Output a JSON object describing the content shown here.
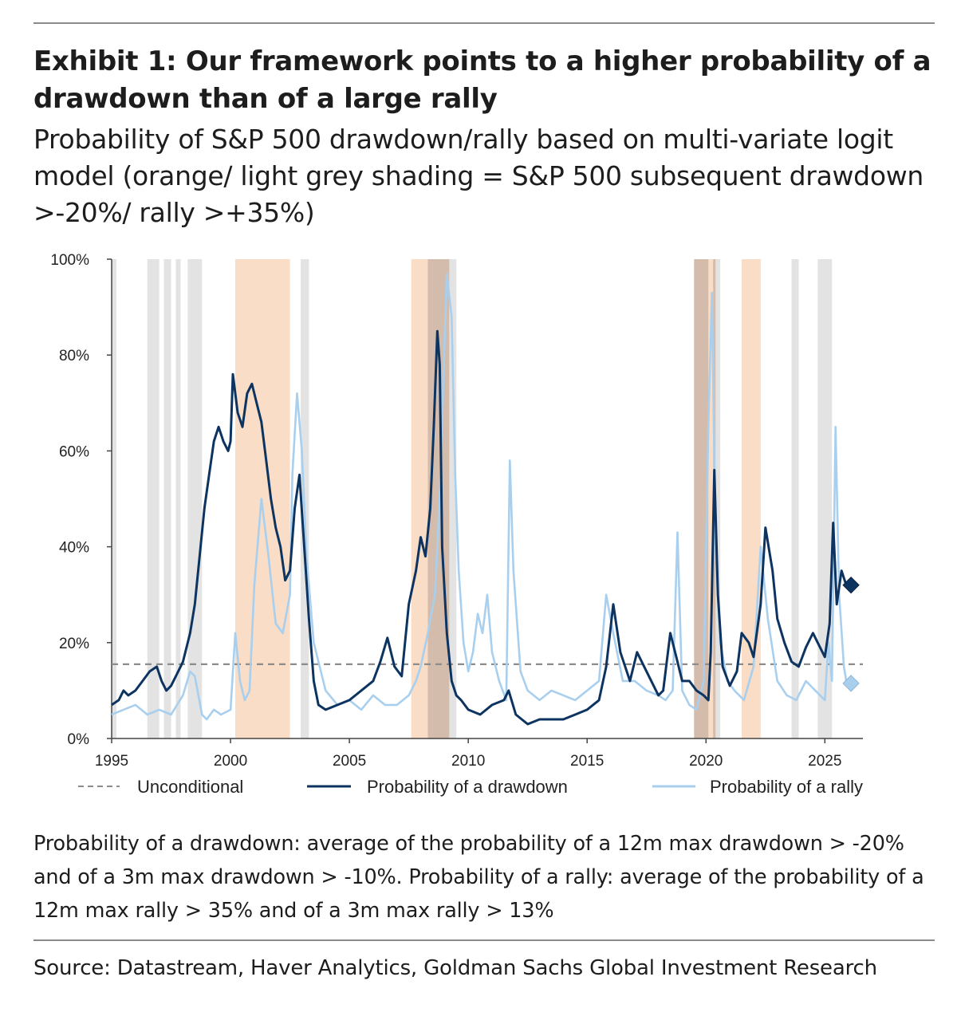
{
  "header": {
    "title": "Exhibit 1: Our framework points to a higher probability of a drawdown than of a large rally",
    "subtitle": "Probability of S&P 500 drawdown/rally based on multi-variate logit model (orange/ light grey shading = S&P 500 subsequent drawdown >-20%/ rally >+35%)"
  },
  "colors": {
    "drawdown": "#0d3460",
    "rally": "#a9cfee",
    "unconditional": "#8c8c8c",
    "drawdown_shade": "#f8d4b8",
    "rally_shade": "#dedede"
  },
  "chart_data": {
    "type": "line",
    "xlim": [
      1995,
      2026.6
    ],
    "ylim": [
      0,
      100
    ],
    "x_ticks": [
      1995,
      2000,
      2005,
      2010,
      2015,
      2020,
      2025
    ],
    "x_tick_labels": [
      "1995",
      "2000",
      "2005",
      "2010",
      "2015",
      "2020",
      "2025"
    ],
    "y_ticks": [
      0,
      20,
      40,
      60,
      80,
      100
    ],
    "y_tick_labels": [
      "0%",
      "20%",
      "40%",
      "60%",
      "80%",
      "100%"
    ],
    "unconditional": 15.5,
    "drawdown_periods": [
      [
        2000.2,
        2002.5
      ],
      [
        2007.6,
        2009.2
      ],
      [
        2019.5,
        2020.4
      ],
      [
        2021.5,
        2022.3
      ]
    ],
    "rally_periods": [
      [
        1995.0,
        1995.2
      ],
      [
        1996.5,
        1997.0
      ],
      [
        1997.2,
        1997.5
      ],
      [
        1997.7,
        1997.9
      ],
      [
        1998.2,
        1998.8
      ],
      [
        2002.95,
        2003.3
      ],
      [
        2008.3,
        2009.5
      ],
      [
        2019.5,
        2020.1
      ],
      [
        2020.3,
        2020.6
      ],
      [
        2023.6,
        2023.9
      ],
      [
        2024.7,
        2025.3
      ]
    ],
    "legend": [
      "Unconditional",
      "Probability of a drawdown",
      "Probability of a rally"
    ],
    "series": [
      {
        "name": "Probability of a drawdown",
        "x": [
          1995,
          1995.3,
          1995.5,
          1995.7,
          1996,
          1996.3,
          1996.6,
          1996.9,
          1997.1,
          1997.3,
          1997.5,
          1997.7,
          1998,
          1998.3,
          1998.5,
          1998.7,
          1998.9,
          1999.1,
          1999.3,
          1999.5,
          1999.7,
          1999.9,
          2000,
          2000.1,
          2000.3,
          2000.5,
          2000.7,
          2000.9,
          2001.1,
          2001.3,
          2001.5,
          2001.7,
          2001.9,
          2002.1,
          2002.3,
          2002.5,
          2002.7,
          2002.9,
          2003.1,
          2003.3,
          2003.5,
          2003.7,
          2004,
          2004.5,
          2005,
          2005.5,
          2006,
          2006.3,
          2006.6,
          2006.9,
          2007.2,
          2007.5,
          2007.8,
          2008,
          2008.2,
          2008.4,
          2008.55,
          2008.7,
          2008.8,
          2008.9,
          2009.1,
          2009.3,
          2009.5,
          2009.7,
          2010,
          2010.5,
          2011,
          2011.5,
          2011.7,
          2012,
          2012.5,
          2013,
          2013.5,
          2014,
          2014.5,
          2015,
          2015.5,
          2015.8,
          2016.1,
          2016.4,
          2016.8,
          2017.1,
          2017.5,
          2018,
          2018.2,
          2018.5,
          2018.8,
          2019,
          2019.3,
          2019.6,
          2019.9,
          2020.1,
          2020.2,
          2020.35,
          2020.5,
          2020.7,
          2021,
          2021.3,
          2021.5,
          2021.8,
          2022,
          2022.3,
          2022.5,
          2022.8,
          2023,
          2023.3,
          2023.6,
          2023.9,
          2024.2,
          2024.5,
          2024.8,
          2025,
          2025.2,
          2025.35,
          2025.5,
          2025.7,
          2025.9
        ],
        "values": [
          7,
          8,
          10,
          9,
          10,
          12,
          14,
          15,
          12,
          10,
          11,
          13,
          16,
          22,
          28,
          38,
          48,
          55,
          62,
          65,
          62,
          60,
          62,
          76,
          68,
          65,
          72,
          74,
          70,
          66,
          58,
          50,
          44,
          40,
          33,
          35,
          48,
          55,
          40,
          25,
          12,
          7,
          6,
          7,
          8,
          10,
          12,
          16,
          21,
          15,
          13,
          28,
          35,
          42,
          38,
          48,
          65,
          85,
          78,
          40,
          22,
          12,
          9,
          8,
          6,
          5,
          7,
          8,
          10,
          5,
          3,
          4,
          4,
          4,
          5,
          6,
          8,
          15,
          28,
          18,
          12,
          18,
          14,
          9,
          10,
          22,
          16,
          12,
          12,
          10,
          9,
          8,
          18,
          56,
          30,
          15,
          11,
          14,
          22,
          20,
          17,
          28,
          44,
          35,
          25,
          20,
          16,
          15,
          19,
          22,
          19,
          17,
          24,
          45,
          28,
          35,
          32
        ]
      },
      {
        "name": "Probability of a rally",
        "x": [
          1995,
          1995.5,
          1996,
          1996.5,
          1997,
          1997.5,
          1998,
          1998.3,
          1998.5,
          1998.8,
          1999,
          1999.3,
          1999.6,
          2000,
          2000.2,
          2000.4,
          2000.6,
          2000.8,
          2001,
          2001.3,
          2001.6,
          2001.9,
          2002.2,
          2002.5,
          2002.6,
          2002.8,
          2003,
          2003.2,
          2003.5,
          2004,
          2004.5,
          2005,
          2005.5,
          2006,
          2006.5,
          2007,
          2007.5,
          2007.8,
          2008,
          2008.3,
          2008.6,
          2008.8,
          2008.95,
          2009.1,
          2009.3,
          2009.45,
          2009.6,
          2009.8,
          2010,
          2010.2,
          2010.4,
          2010.6,
          2010.8,
          2011,
          2011.3,
          2011.6,
          2011.75,
          2011.9,
          2012.2,
          2012.5,
          2013,
          2013.5,
          2014,
          2014.5,
          2015,
          2015.5,
          2015.8,
          2016.1,
          2016.5,
          2017,
          2017.5,
          2018,
          2018.3,
          2018.6,
          2018.8,
          2019,
          2019.3,
          2019.6,
          2019.9,
          2020.1,
          2020.25,
          2020.4,
          2020.6,
          2020.9,
          2021.2,
          2021.6,
          2022,
          2022.3,
          2022.6,
          2023,
          2023.4,
          2023.8,
          2024.2,
          2024.6,
          2025,
          2025.15,
          2025.3,
          2025.45,
          2025.6,
          2025.8,
          2025.9
        ],
        "values": [
          5,
          6,
          7,
          5,
          6,
          5,
          9,
          14,
          13,
          5,
          4,
          6,
          5,
          6,
          22,
          12,
          8,
          10,
          32,
          50,
          38,
          24,
          22,
          30,
          55,
          72,
          60,
          38,
          20,
          10,
          7,
          8,
          6,
          9,
          7,
          7,
          9,
          12,
          15,
          22,
          30,
          50,
          75,
          97,
          88,
          55,
          35,
          20,
          14,
          18,
          26,
          22,
          30,
          18,
          12,
          8,
          58,
          35,
          14,
          10,
          8,
          10,
          9,
          8,
          10,
          12,
          30,
          22,
          12,
          12,
          10,
          9,
          8,
          10,
          43,
          10,
          7,
          6,
          12,
          65,
          93,
          40,
          20,
          12,
          10,
          8,
          15,
          40,
          25,
          12,
          9,
          8,
          12,
          10,
          8,
          20,
          12,
          65,
          30,
          15,
          12
        ]
      }
    ],
    "end_markers": [
      {
        "name": "Probability of a drawdown",
        "x": 2026.1,
        "value": 32
      },
      {
        "name": "Probability of a rally",
        "x": 2026.1,
        "value": 11.5
      }
    ]
  },
  "note": "Probability of a drawdown: average of the probability of a 12m max drawdown > -20% and of a 3m max drawdown > -10%. Probability of a rally: average of the probability of a 12m max rally > 35% and of a 3m max rally > 13%",
  "source": "Source: Datastream, Haver Analytics, Goldman Sachs Global Investment Research"
}
